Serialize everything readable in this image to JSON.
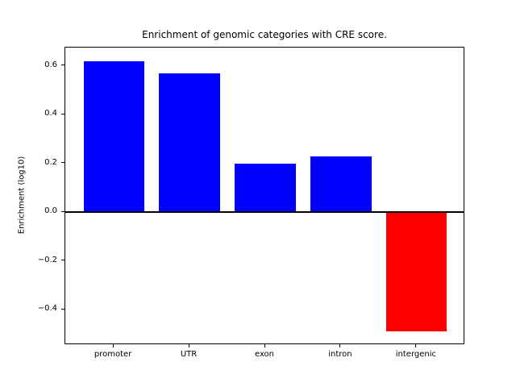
{
  "chart_data": {
    "type": "bar",
    "title": "Enrichment of genomic categories with CRE score.",
    "ylabel": "Enrichment (log10)",
    "xlabel": "",
    "categories": [
      "promoter",
      "UTR",
      "exon",
      "intron",
      "intergenic"
    ],
    "values": [
      0.62,
      0.57,
      0.2,
      0.23,
      -0.49
    ],
    "positive_color": "#0000ff",
    "negative_color": "#ff0000",
    "yticks": [
      0.6,
      0.4,
      0.2,
      0.0,
      -0.2,
      -0.4
    ],
    "ytick_labels": [
      "0.6",
      "0.4",
      "0.2",
      "0.0",
      "−0.2",
      "−0.4"
    ],
    "ylim": [
      -0.5455,
      0.6755
    ],
    "xlim": [
      -0.64,
      4.64
    ],
    "bar_width": 0.8,
    "zero_line": true,
    "grid": false,
    "legend": false,
    "spine_color": "#000000",
    "background_color": "#ffffff"
  }
}
